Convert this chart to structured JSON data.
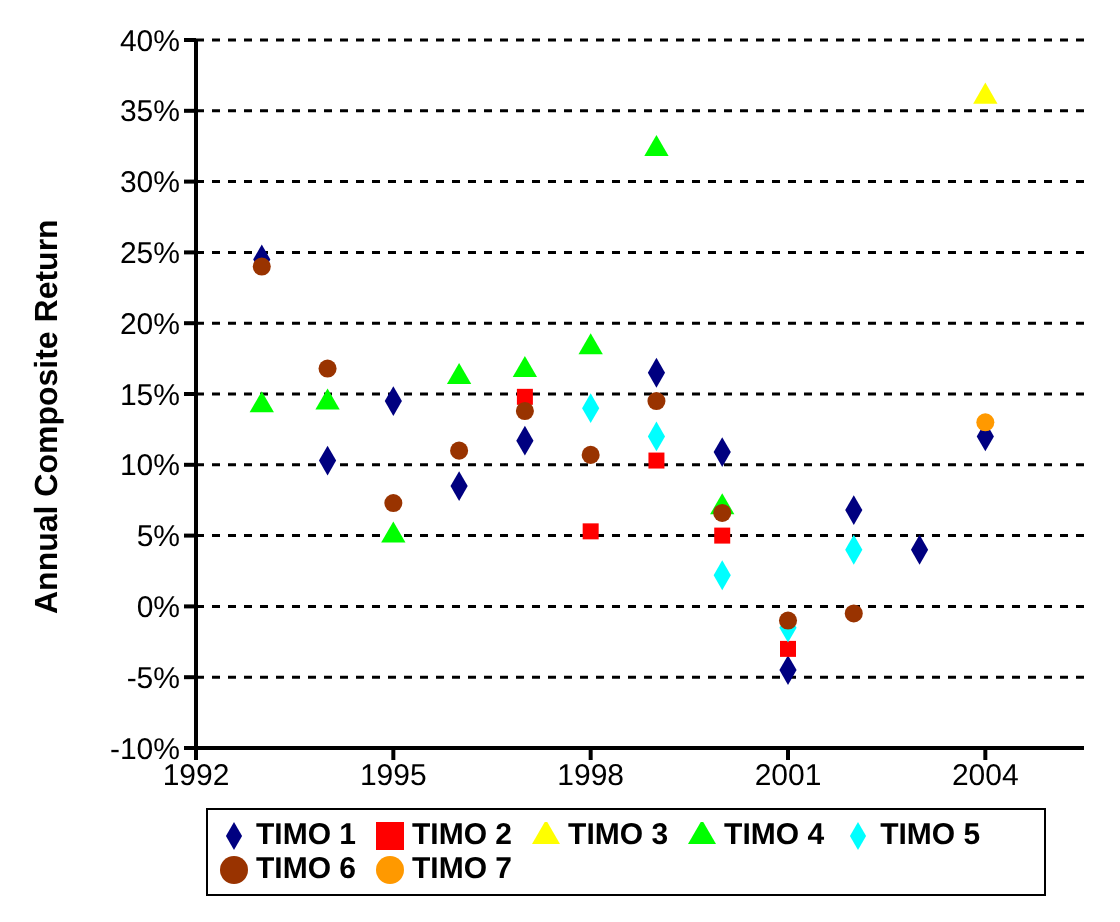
{
  "chart_data": {
    "type": "scatter",
    "ylabel": "Annual Composite Return",
    "xlim": [
      1992,
      2005.5
    ],
    "xticks": [
      1992,
      1995,
      1998,
      2001,
      2004
    ],
    "ylim": [
      -10,
      40
    ],
    "yticks": [
      {
        "value": -10,
        "label": "-10%"
      },
      {
        "value": -5,
        "label": "-5%"
      },
      {
        "value": 0,
        "label": "0%"
      },
      {
        "value": 5,
        "label": "5%"
      },
      {
        "value": 10,
        "label": "10%"
      },
      {
        "value": 15,
        "label": "15%"
      },
      {
        "value": 20,
        "label": "20%"
      },
      {
        "value": 25,
        "label": "25%"
      },
      {
        "value": 30,
        "label": "30%"
      },
      {
        "value": 35,
        "label": "35%"
      },
      {
        "value": 40,
        "label": "40%"
      }
    ],
    "grid": "y",
    "legend": "bottom",
    "series": [
      {
        "name": "TIMO 1",
        "color": "#000080",
        "marker": "diamond",
        "x": [
          1993,
          1994,
          1995,
          1996,
          1997,
          1999,
          2000,
          2001,
          2002,
          2003,
          2004
        ],
        "values": [
          24.5,
          10.3,
          14.5,
          8.5,
          11.7,
          16.5,
          10.9,
          -4.5,
          6.8,
          4.0,
          12.0
        ]
      },
      {
        "name": "TIMO 2",
        "color": "#ff0000",
        "marker": "square",
        "x": [
          1997,
          1998,
          1999,
          2000,
          2001
        ],
        "values": [
          14.8,
          5.3,
          10.3,
          5.0,
          -3.0
        ]
      },
      {
        "name": "TIMO 3",
        "color": "#ffff00",
        "marker": "triangle",
        "x": [
          2004
        ],
        "values": [
          36.0
        ]
      },
      {
        "name": "TIMO 4",
        "color": "#00ff00",
        "marker": "triangle",
        "x": [
          1993,
          1994,
          1995,
          1996,
          1997,
          1998,
          1999,
          2000
        ],
        "values": [
          14.2,
          14.4,
          5.0,
          16.2,
          16.7,
          18.3,
          32.3,
          7.0
        ]
      },
      {
        "name": "TIMO 5",
        "color": "#00ffff",
        "marker": "diamond",
        "x": [
          1998,
          1999,
          2000,
          2001,
          2002
        ],
        "values": [
          14.0,
          12.0,
          2.2,
          -1.5,
          4.0
        ]
      },
      {
        "name": "TIMO 6",
        "color": "#993300",
        "marker": "circle",
        "x": [
          1993,
          1994,
          1995,
          1996,
          1997,
          1998,
          1999,
          2000,
          2001,
          2002
        ],
        "values": [
          24.0,
          16.8,
          7.3,
          11.0,
          13.8,
          10.7,
          14.5,
          6.6,
          -1.0,
          -0.5
        ]
      },
      {
        "name": "TIMO 7",
        "color": "#ff9900",
        "marker": "circle",
        "x": [
          2004
        ],
        "values": [
          13.0
        ]
      }
    ]
  }
}
